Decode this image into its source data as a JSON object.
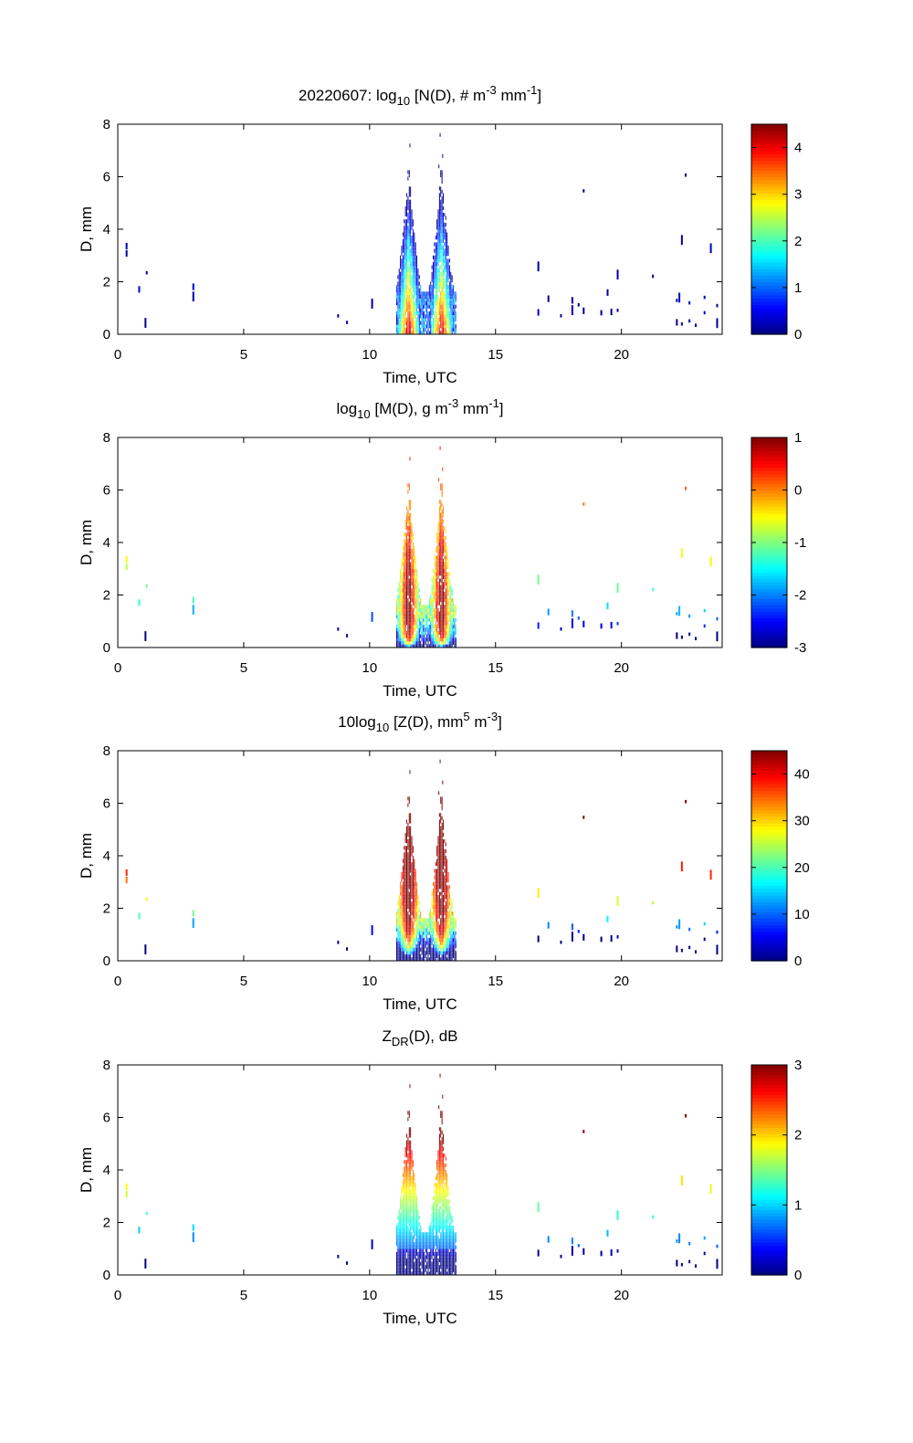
{
  "chart_data": [
    {
      "type": "heatmap",
      "title": {
        "prefix": "20220607: log",
        "sub": "10",
        "mid": " [N(D), # m",
        "sup1": "-3",
        "mid2": " mm",
        "sup2": "-1",
        "suffix": "]"
      },
      "xlabel": "Time, UTC",
      "ylabel": "D, mm",
      "xlim": [
        0,
        24
      ],
      "ylim": [
        0,
        8
      ],
      "xticks": [
        0,
        5,
        10,
        15,
        20
      ],
      "yticks": [
        0,
        2,
        4,
        6,
        8
      ],
      "colorbar": {
        "range": [
          0,
          4.5
        ],
        "ticks": [
          0,
          1,
          2,
          3,
          4
        ]
      },
      "variable": "N"
    },
    {
      "type": "heatmap",
      "title": {
        "prefix": "log",
        "sub": "10",
        "mid": " [M(D), g m",
        "sup1": "-3",
        "mid2": " mm",
        "sup2": "-1",
        "suffix": "]"
      },
      "xlabel": "Time, UTC",
      "ylabel": "D, mm",
      "xlim": [
        0,
        24
      ],
      "ylim": [
        0,
        8
      ],
      "xticks": [
        0,
        5,
        10,
        15,
        20
      ],
      "yticks": [
        0,
        2,
        4,
        6,
        8
      ],
      "colorbar": {
        "range": [
          -3,
          1
        ],
        "ticks": [
          1,
          0,
          -1,
          -2,
          -3
        ]
      },
      "variable": "M"
    },
    {
      "type": "heatmap",
      "title": {
        "prefix": "10log",
        "sub": "10",
        "mid": " [Z(D),  mm",
        "sup1": "5",
        "mid2": " m",
        "sup2": "-3",
        "suffix": "]"
      },
      "xlabel": "Time, UTC",
      "ylabel": "D, mm",
      "xlim": [
        0,
        24
      ],
      "ylim": [
        0,
        8
      ],
      "xticks": [
        0,
        5,
        10,
        15,
        20
      ],
      "yticks": [
        0,
        2,
        4,
        6,
        8
      ],
      "colorbar": {
        "range": [
          0,
          45
        ],
        "ticks": [
          40,
          30,
          20,
          10,
          0
        ]
      },
      "variable": "Z"
    },
    {
      "type": "heatmap",
      "title": {
        "prefix": "Z",
        "sub": "DR",
        "mid": "(D), dB",
        "sup1": "",
        "mid2": "",
        "sup2": "",
        "suffix": ""
      },
      "xlabel": "Time, UTC",
      "ylabel": "D, mm",
      "xlim": [
        0,
        24
      ],
      "ylim": [
        0,
        8
      ],
      "xticks": [
        0,
        5,
        10,
        15,
        20
      ],
      "yticks": [
        0,
        2,
        4,
        6,
        8
      ],
      "colorbar": {
        "range": [
          0,
          3
        ],
        "ticks": [
          3,
          2,
          1,
          0
        ]
      },
      "variable": "ZDR"
    }
  ],
  "events": {
    "rain_peaks_utc": [
      11.55,
      12.85
    ],
    "rain_window_utc": [
      11.05,
      13.45
    ],
    "scattered_times_utc": [
      0.35,
      0.85,
      1.1,
      1.15,
      3.0,
      8.75,
      9.1,
      10.1,
      16.7,
      17.1,
      17.6,
      18.05,
      18.3,
      18.5,
      19.2,
      19.45,
      19.6,
      19.85,
      21.25,
      22.2,
      22.3,
      22.4,
      22.7,
      22.95,
      23.3,
      23.55,
      23.8
    ]
  }
}
